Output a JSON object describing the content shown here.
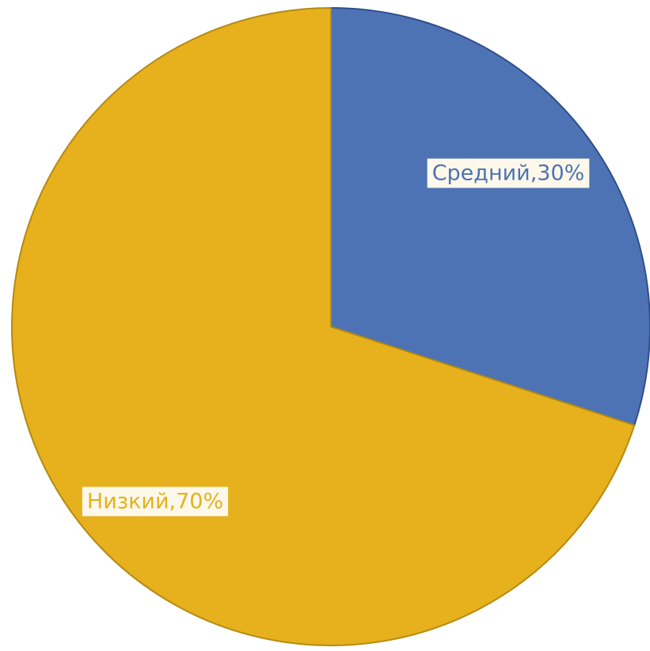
{
  "chart_data": {
    "type": "pie",
    "title": "",
    "start_angle_deg": 0,
    "direction": "clockwise",
    "slices": [
      {
        "label": "Средний",
        "value": 30,
        "data_label": "Средний,30%",
        "color": "#4e73b5",
        "stroke": "#2f4f8a",
        "label_color": "#4e73b5"
      },
      {
        "label": "Низкий",
        "value": 70,
        "data_label": "Низкий,70%",
        "color": "#e6b11d",
        "stroke": "#b48a12",
        "label_color": "#e6b11d"
      }
    ],
    "legend": "none",
    "data_label_background": "#fdf8ea"
  }
}
